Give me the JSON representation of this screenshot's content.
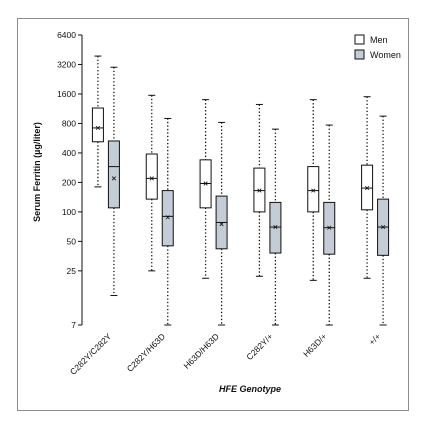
{
  "chart_data": {
    "type": "box",
    "y_scale": "log",
    "ylim": [
      7,
      6400
    ],
    "ylabel": "Serum Ferritin (µg/liter)",
    "xlabel": "HFE Genotype",
    "yticks": [
      7,
      25,
      50,
      100,
      200,
      400,
      800,
      1600,
      3200,
      6400
    ],
    "categories": [
      "C282Y/C282Y",
      "C282Y/H63D",
      "H63D/H63D",
      "C282Y/+",
      "H63D/+",
      "+/+"
    ],
    "legend": {
      "position": "top-right"
    },
    "series": [
      {
        "name": "Men",
        "color": "#ffffff",
        "boxes": [
          {
            "whisker_low": 180,
            "q1": 520,
            "median": 720,
            "q3": 1150,
            "whisker_high": 3900,
            "mean": 720
          },
          {
            "whisker_low": 25,
            "q1": 135,
            "median": 220,
            "q3": 390,
            "whisker_high": 1550,
            "mean": 220
          },
          {
            "whisker_low": 21,
            "q1": 110,
            "median": 195,
            "q3": 340,
            "whisker_high": 1400,
            "mean": 195
          },
          {
            "whisker_low": 22,
            "q1": 100,
            "median": 165,
            "q3": 280,
            "whisker_high": 1250,
            "mean": 165
          },
          {
            "whisker_low": 20,
            "q1": 100,
            "median": 165,
            "q3": 290,
            "whisker_high": 1400,
            "mean": 165
          },
          {
            "whisker_low": 21,
            "q1": 105,
            "median": 175,
            "q3": 300,
            "whisker_high": 1500,
            "mean": 175
          }
        ]
      },
      {
        "name": "Women",
        "color": "#c4ccd5",
        "boxes": [
          {
            "whisker_low": 14,
            "q1": 110,
            "median": 290,
            "q3": 530,
            "whisker_high": 3000,
            "mean": 220
          },
          {
            "whisker_low": 7,
            "q1": 45,
            "median": 90,
            "q3": 165,
            "whisker_high": 900,
            "mean": 88
          },
          {
            "whisker_low": 7,
            "q1": 42,
            "median": 78,
            "q3": 145,
            "whisker_high": 820,
            "mean": 75
          },
          {
            "whisker_low": 7,
            "q1": 38,
            "median": 70,
            "q3": 125,
            "whisker_high": 700,
            "mean": 70
          },
          {
            "whisker_low": 7,
            "q1": 37,
            "median": 69,
            "q3": 125,
            "whisker_high": 770,
            "mean": 69
          },
          {
            "whisker_low": 7,
            "q1": 36,
            "median": 70,
            "q3": 135,
            "whisker_high": 950,
            "mean": 70
          }
        ]
      }
    ]
  }
}
